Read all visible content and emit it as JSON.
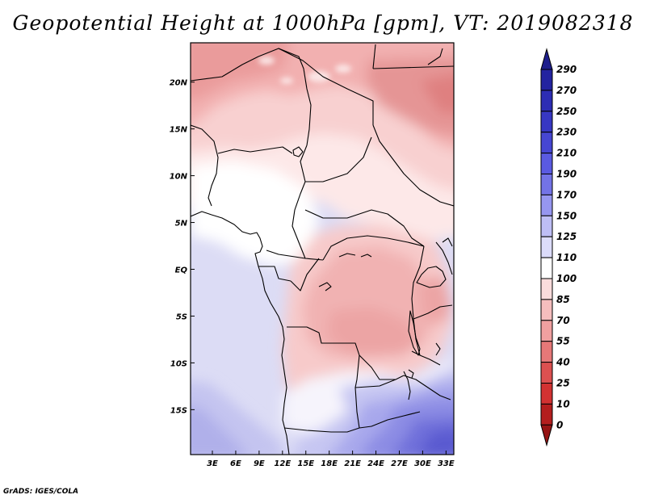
{
  "title": "Geopotential Height at 1000hPa [gpm], VT: 2019082318",
  "credit": "GrADS: IGES/COLA",
  "map": {
    "variable": "Geopotential Height",
    "level": "1000hPa",
    "units": "gpm",
    "valid_time": "2019082318",
    "lat_range": [
      -19.8,
      24.2
    ],
    "lon_range": [
      0.2,
      34.0
    ],
    "lat_labels": [
      {
        "lat": 20,
        "label": "20N"
      },
      {
        "lat": 15,
        "label": "15N"
      },
      {
        "lat": 10,
        "label": "10N"
      },
      {
        "lat": 5,
        "label": "5N"
      },
      {
        "lat": 0,
        "label": "EQ"
      },
      {
        "lat": -5,
        "label": "5S"
      },
      {
        "lat": -10,
        "label": "10S"
      },
      {
        "lat": -15,
        "label": "15S"
      }
    ],
    "lon_labels": [
      {
        "lon": 3,
        "label": "3E"
      },
      {
        "lon": 6,
        "label": "6E"
      },
      {
        "lon": 9,
        "label": "9E"
      },
      {
        "lon": 12,
        "label": "12E"
      },
      {
        "lon": 15,
        "label": "15E"
      },
      {
        "lon": 18,
        "label": "18E"
      },
      {
        "lon": 21,
        "label": "21E"
      },
      {
        "lon": 24,
        "label": "24E"
      },
      {
        "lon": 27,
        "label": "27E"
      },
      {
        "lon": 30,
        "label": "30E"
      },
      {
        "lon": 33,
        "label": "33E"
      }
    ]
  },
  "colorbar": {
    "levels": [
      "290",
      "270",
      "250",
      "230",
      "210",
      "190",
      "170",
      "150",
      "125",
      "110",
      "100",
      "85",
      "70",
      "55",
      "40",
      "25",
      "10",
      "0"
    ],
    "colors": [
      "#1e1e8c",
      "#2323a0",
      "#2d2db4",
      "#3737c3",
      "#4646d2",
      "#5a5ae1",
      "#7373e6",
      "#9696f0",
      "#bebef5",
      "#dcdcfa",
      "#ffffff",
      "#fadcdc",
      "#f5bebe",
      "#f0a0a0",
      "#e67878",
      "#dc5050",
      "#d23232",
      "#b41e1e",
      "#961414"
    ]
  }
}
